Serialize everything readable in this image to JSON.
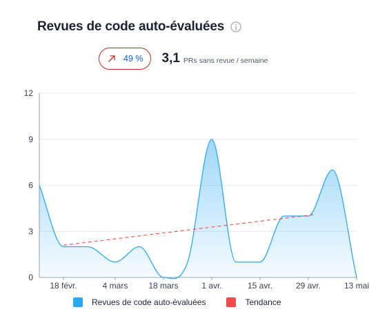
{
  "header": {
    "title": "Revues de code auto-évaluées",
    "info_icon": "info-icon"
  },
  "kpi": {
    "trend_icon": "arrow-up-right-icon",
    "change": "49 %",
    "value": "3,1",
    "unit": "PRs sans revue / semaine"
  },
  "colors": {
    "series": "#2aa8f2",
    "trend": "#f04a4a",
    "badge_border": "#c62828",
    "badge_text": "#1a5fd6"
  },
  "chart_data": {
    "type": "area",
    "y_ticks": [
      "0",
      "3",
      "6",
      "9",
      "12"
    ],
    "ylim": [
      0,
      12
    ],
    "x_tick_labels": [
      "18 févr.",
      "4 mars",
      "18 mars",
      "1 avr.",
      "15 avr.",
      "29 avr.",
      "13 mai"
    ],
    "series": [
      {
        "name": "Revues de code auto-évaluées",
        "x": [
          "2024-02-11",
          "2024-02-18",
          "2024-02-25",
          "2024-03-04",
          "2024-03-11",
          "2024-03-18",
          "2024-03-25",
          "2024-04-01",
          "2024-04-08",
          "2024-04-15",
          "2024-04-22",
          "2024-04-29",
          "2024-05-06",
          "2024-05-13"
        ],
        "values": [
          6,
          2,
          2,
          1,
          2,
          0,
          1,
          9,
          1,
          1,
          4,
          4,
          7,
          0
        ]
      },
      {
        "name": "Tendance",
        "x": [
          "2024-02-18",
          "2024-05-01"
        ],
        "values": [
          2.1,
          4.1
        ]
      }
    ],
    "grid": true
  }
}
